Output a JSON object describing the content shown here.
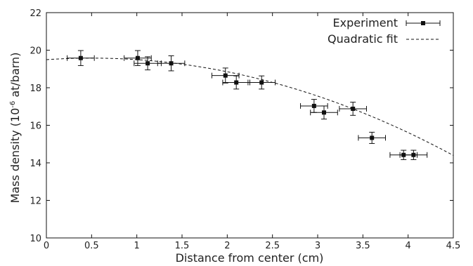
{
  "chart_data": {
    "type": "scatter",
    "xlabel": "Distance from center (cm)",
    "ylabel_prefix": "Mass density (10",
    "ylabel_exp": "-6",
    "ylabel_suffix": " at/barn)",
    "xlim": [
      0,
      4.5
    ],
    "ylim": [
      10,
      22
    ],
    "xticks": [
      "0",
      "0.5",
      "1",
      "1.5",
      "2",
      "2.5",
      "3",
      "3.5",
      "4",
      "4.5"
    ],
    "yticks": [
      "10",
      "12",
      "14",
      "16",
      "18",
      "20",
      "22"
    ],
    "grid": false,
    "legend_position": "top-right",
    "series": [
      {
        "name": "Experiment",
        "marker": "square",
        "color": "#111111",
        "points": [
          {
            "x": 0.38,
            "y": 19.58,
            "xerr": 0.15,
            "yerr": 0.4
          },
          {
            "x": 1.01,
            "y": 19.58,
            "xerr": 0.15,
            "yerr": 0.4
          },
          {
            "x": 1.12,
            "y": 19.3,
            "xerr": 0.15,
            "yerr": 0.35
          },
          {
            "x": 1.38,
            "y": 19.3,
            "xerr": 0.15,
            "yerr": 0.4
          },
          {
            "x": 1.98,
            "y": 18.65,
            "xerr": 0.15,
            "yerr": 0.4
          },
          {
            "x": 2.1,
            "y": 18.28,
            "xerr": 0.15,
            "yerr": 0.35
          },
          {
            "x": 2.38,
            "y": 18.28,
            "xerr": 0.15,
            "yerr": 0.35
          },
          {
            "x": 2.96,
            "y": 17.03,
            "xerr": 0.15,
            "yerr": 0.35
          },
          {
            "x": 3.07,
            "y": 16.68,
            "xerr": 0.15,
            "yerr": 0.35
          },
          {
            "x": 3.39,
            "y": 16.88,
            "xerr": 0.15,
            "yerr": 0.35
          },
          {
            "x": 3.6,
            "y": 15.33,
            "xerr": 0.15,
            "yerr": 0.3
          },
          {
            "x": 3.95,
            "y": 14.42,
            "xerr": 0.15,
            "yerr": 0.25
          },
          {
            "x": 4.06,
            "y": 14.42,
            "xerr": 0.15,
            "yerr": 0.25
          }
        ]
      },
      {
        "name": "Quadratic fit",
        "style": "dashed",
        "color": "#111111",
        "equation": {
          "a": -0.3244,
          "b": 0.3266,
          "c": 19.495
        },
        "x_range": [
          0,
          4.5
        ]
      }
    ]
  }
}
